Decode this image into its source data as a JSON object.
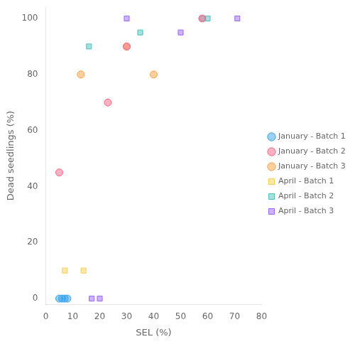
{
  "chart_data": {
    "type": "scatter",
    "xlabel": "SEL (%)",
    "ylabel": "Dead seedlings (%)",
    "xlim": [
      0,
      80
    ],
    "ylim": [
      -2,
      104
    ],
    "xticks": [
      0,
      10,
      20,
      30,
      40,
      50,
      60,
      70,
      80
    ],
    "yticks": [
      0,
      20,
      40,
      60,
      80,
      100
    ],
    "grid": false,
    "legend": "right",
    "series": [
      {
        "name": "January - Batch 1",
        "marker": "circle",
        "x": [
          5,
          6,
          7,
          8
        ],
        "values": [
          0,
          0,
          0,
          0
        ]
      },
      {
        "name": "January - Batch 2",
        "marker": "circle",
        "x": [
          5,
          23,
          30,
          58
        ],
        "values": [
          45,
          70,
          90,
          100
        ]
      },
      {
        "name": "January - Batch 3",
        "marker": "circle",
        "x": [
          13,
          30,
          40
        ],
        "values": [
          80,
          90,
          80
        ]
      },
      {
        "name": "April - Batch 1",
        "marker": "square",
        "x": [
          7,
          14
        ],
        "values": [
          10,
          10
        ]
      },
      {
        "name": "April - Batch 2",
        "marker": "square",
        "x": [
          16,
          35,
          58,
          60
        ],
        "values": [
          90,
          95,
          100,
          100
        ]
      },
      {
        "name": "April - Batch 3",
        "marker": "square",
        "x": [
          17,
          20,
          30,
          50,
          71
        ],
        "values": [
          0,
          0,
          100,
          95,
          100
        ]
      }
    ]
  }
}
